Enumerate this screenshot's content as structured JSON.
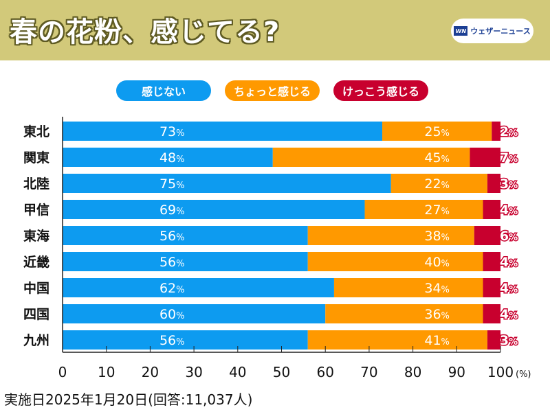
{
  "header": {
    "title": "春の花粉、感じてる?",
    "logo_mark": "WN",
    "logo_text": "ウェザーニュース"
  },
  "colors": {
    "header_bg": "#d2c97a",
    "no": "#0d9bf0",
    "little": "#ff9900",
    "much": "#c8002e"
  },
  "footer": "実施日2025年1月20日(回答:11,037人)",
  "chart_data": {
    "type": "bar",
    "orientation": "horizontal",
    "stacked": true,
    "title": "春の花粉、感じてる?",
    "categories": [
      "東北",
      "関東",
      "北陸",
      "甲信",
      "東海",
      "近畿",
      "中国",
      "四国",
      "九州"
    ],
    "series": [
      {
        "name": "感じない",
        "color": "#0d9bf0",
        "values": [
          73,
          48,
          75,
          69,
          56,
          56,
          62,
          60,
          56
        ]
      },
      {
        "name": "ちょっと感じる",
        "color": "#ff9900",
        "values": [
          25,
          45,
          22,
          27,
          38,
          40,
          34,
          36,
          41
        ]
      },
      {
        "name": "けっこう感じる",
        "color": "#c8002e",
        "values": [
          2,
          7,
          3,
          4,
          6,
          4,
          4,
          4,
          3
        ]
      }
    ],
    "xlim": [
      0,
      100
    ],
    "xticks": [
      0,
      10,
      20,
      30,
      40,
      50,
      60,
      70,
      80,
      90,
      100
    ],
    "xunit": "(%)",
    "value_suffix": "%",
    "legend": "top"
  }
}
